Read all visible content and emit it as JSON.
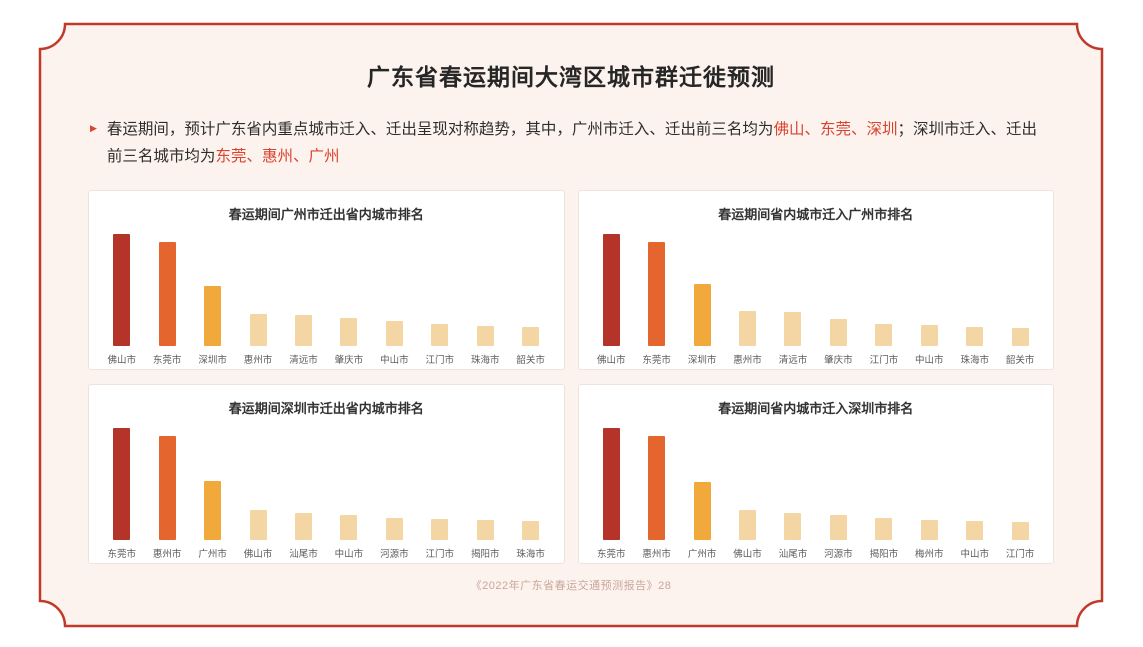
{
  "page": {
    "title": "广东省春运期间大湾区城市群迁徙预测",
    "footer": "《2022年广东省春运交通预测报告》28"
  },
  "icons": {
    "bullet": "▶"
  },
  "summary": {
    "segments": [
      {
        "text": "春运期间，预计广东省内重点城市迁入、迁出呈现对称趋势，其中，广州市迁入、迁出前三名均为",
        "highlight": false
      },
      {
        "text": "佛山、东莞、深圳",
        "highlight": true
      },
      {
        "text": "；深圳市迁入、迁出前三名城市均为",
        "highlight": false
      },
      {
        "text": "东莞、惠州、广州",
        "highlight": true
      }
    ]
  },
  "colors": {
    "frame_border": "#c03a2b",
    "frame_bg": "#fdf3ee",
    "highlight": "#d9432f",
    "bar_rank1": "#b5342a",
    "bar_rank2": "#e5652e",
    "bar_rank3": "#f2a93b",
    "bar_other": "#f3d6a4"
  },
  "chart_data": [
    {
      "type": "bar",
      "title": "春运期间广州市迁出省内城市排名",
      "categories": [
        "佛山市",
        "东莞市",
        "深圳市",
        "惠州市",
        "清远市",
        "肇庆市",
        "中山市",
        "江门市",
        "珠海市",
        "韶关市"
      ],
      "values": [
        100,
        93,
        54,
        29,
        28,
        25,
        22,
        20,
        18,
        17
      ],
      "xlabel": "",
      "ylabel": "",
      "ylim": [
        0,
        100
      ],
      "grid": false,
      "legend": "none"
    },
    {
      "type": "bar",
      "title": "春运期间省内城市迁入广州市排名",
      "categories": [
        "佛山市",
        "东莞市",
        "深圳市",
        "惠州市",
        "清远市",
        "肇庆市",
        "江门市",
        "中山市",
        "珠海市",
        "韶关市"
      ],
      "values": [
        100,
        93,
        55,
        31,
        30,
        24,
        20,
        19,
        17,
        16
      ],
      "xlabel": "",
      "ylabel": "",
      "ylim": [
        0,
        100
      ],
      "grid": false,
      "legend": "none"
    },
    {
      "type": "bar",
      "title": "春运期间深圳市迁出省内城市排名",
      "categories": [
        "东莞市",
        "惠州市",
        "广州市",
        "佛山市",
        "汕尾市",
        "中山市",
        "河源市",
        "江门市",
        "揭阳市",
        "珠海市"
      ],
      "values": [
        100,
        93,
        53,
        27,
        24,
        22,
        20,
        19,
        18,
        17
      ],
      "xlabel": "",
      "ylabel": "",
      "ylim": [
        0,
        100
      ],
      "grid": false,
      "legend": "none"
    },
    {
      "type": "bar",
      "title": "春运期间省内城市迁入深圳市排名",
      "categories": [
        "东莞市",
        "惠州市",
        "广州市",
        "佛山市",
        "汕尾市",
        "河源市",
        "揭阳市",
        "梅州市",
        "中山市",
        "江门市"
      ],
      "values": [
        100,
        93,
        52,
        27,
        24,
        22,
        20,
        18,
        17,
        16
      ],
      "xlabel": "",
      "ylabel": "",
      "ylim": [
        0,
        100
      ],
      "grid": false,
      "legend": "none"
    }
  ]
}
